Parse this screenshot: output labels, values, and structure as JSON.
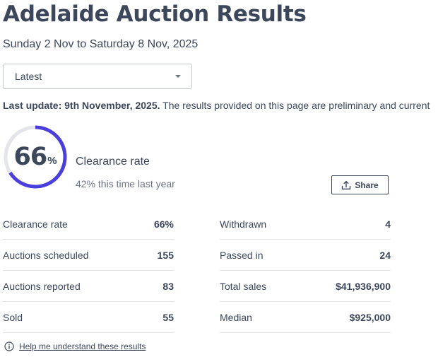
{
  "title": "Adelaide Auction Results",
  "date_range": "Sunday 2 Nov to Saturday 8 Nov, 2025",
  "period_select": {
    "selected": "Latest"
  },
  "update": {
    "label": "Last update: 9th November, 2025.",
    "text": "The results provided on this page are preliminary and current"
  },
  "gauge": {
    "value": "66",
    "unit": "%",
    "fraction": 0.66,
    "track_color": "#e3e5ea",
    "fill_color": "#4a3fdc"
  },
  "clearance": {
    "label": "Clearance rate",
    "comparison": "42% this time last year"
  },
  "share": {
    "label": "Share",
    "icon": "share-upload-icon"
  },
  "stats_left": [
    {
      "label": "Clearance rate",
      "value": "66%"
    },
    {
      "label": "Auctions scheduled",
      "value": "155"
    },
    {
      "label": "Auctions reported",
      "value": "83"
    },
    {
      "label": "Sold",
      "value": "55"
    }
  ],
  "stats_right": [
    {
      "label": "Withdrawn",
      "value": "4"
    },
    {
      "label": "Passed in",
      "value": "24"
    },
    {
      "label": "Total sales",
      "value": "$41,936,900"
    },
    {
      "label": "Median",
      "value": "$925,000"
    }
  ],
  "help": {
    "label": "Help me understand these results",
    "icon": "info-icon"
  }
}
